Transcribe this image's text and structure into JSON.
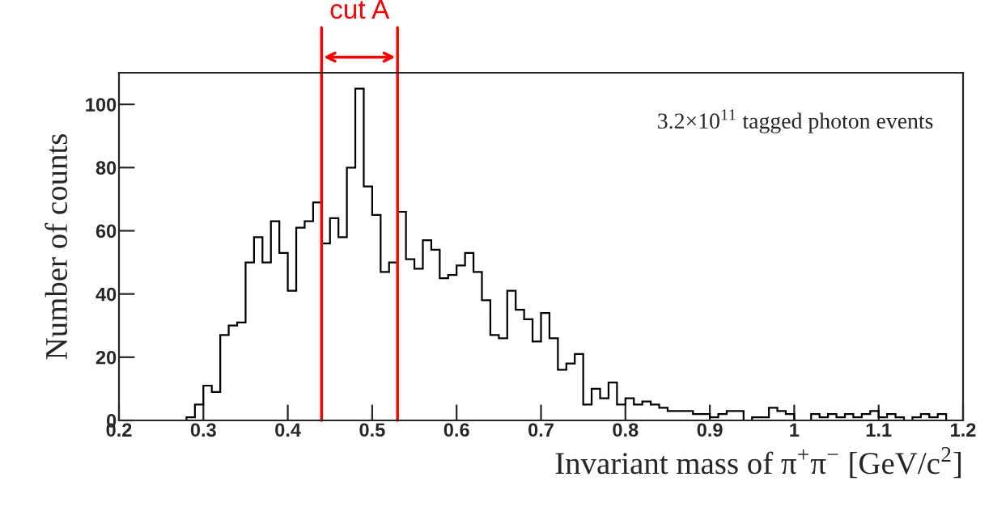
{
  "chart_data": {
    "type": "histogram",
    "xlabel": "Invariant mass of π$^{+}$π$^{−}$ [GeV/c$^{2}$]",
    "ylabel": "Number of counts",
    "annotations": [
      "cut A",
      "3.2×10$^{11}$ tagged photon events"
    ],
    "bins": [
      0.2,
      0.21,
      0.22,
      0.23,
      0.24,
      0.25,
      0.26,
      0.27,
      0.28,
      0.29,
      0.3,
      0.31,
      0.32,
      0.33,
      0.34,
      0.35,
      0.36,
      0.37,
      0.38,
      0.39,
      0.4,
      0.41,
      0.42,
      0.43,
      0.44,
      0.45,
      0.46,
      0.47,
      0.48,
      0.49,
      0.5,
      0.51,
      0.52,
      0.53,
      0.54,
      0.55,
      0.56,
      0.57,
      0.58,
      0.59,
      0.6,
      0.61,
      0.62,
      0.63,
      0.64,
      0.65,
      0.66,
      0.67,
      0.68,
      0.69,
      0.7,
      0.71,
      0.72,
      0.73,
      0.74,
      0.75,
      0.76,
      0.77,
      0.78,
      0.79,
      0.8,
      0.81,
      0.82,
      0.83,
      0.84,
      0.85,
      0.86,
      0.87,
      0.88,
      0.89,
      0.9,
      0.91,
      0.92,
      0.93,
      0.94,
      0.95,
      0.96,
      0.97,
      0.98,
      0.99,
      1.0,
      1.01,
      1.02,
      1.03,
      1.04,
      1.05,
      1.06,
      1.07,
      1.08,
      1.09,
      1.1,
      1.11,
      1.12,
      1.13,
      1.14,
      1.15,
      1.16,
      1.17,
      1.18,
      1.19,
      1.2
    ],
    "values": [
      0,
      0,
      0,
      0,
      0,
      0,
      0,
      0,
      1,
      5,
      11,
      9,
      27,
      30,
      31,
      50,
      58,
      50,
      63,
      53,
      41,
      61,
      63,
      69,
      56,
      64,
      58,
      80,
      105,
      74,
      65,
      47,
      50,
      66,
      51,
      48,
      57,
      54,
      45,
      46,
      49,
      53,
      47,
      38,
      27,
      26,
      41,
      35,
      32,
      25,
      34,
      26,
      16,
      18,
      21,
      5,
      10,
      7,
      12,
      5,
      7,
      5,
      6,
      5,
      4,
      3,
      3,
      3,
      2,
      2,
      1,
      2,
      3,
      3,
      0,
      1,
      1,
      4,
      3,
      2,
      0,
      0,
      2,
      1,
      2,
      1,
      2,
      1,
      2,
      3,
      1,
      2,
      1,
      0,
      1,
      2,
      1,
      2,
      0,
      0
    ],
    "color": "#000000",
    "ref_lines": [
      {
        "axis": "x",
        "value": 0.44,
        "color": "#ff0000"
      },
      {
        "axis": "x",
        "value": 0.53,
        "color": "#ff0000"
      }
    ],
    "xlim": [
      0.2,
      1.2
    ],
    "xticks": [
      0.2,
      0.3,
      0.4,
      0.5,
      0.6,
      0.7,
      0.8,
      0.9,
      1,
      1.1,
      1.2
    ],
    "ylim": [
      0,
      110
    ],
    "yticks": [
      0,
      20,
      40,
      60,
      80,
      100
    ],
    "grid": false,
    "legend": false
  }
}
